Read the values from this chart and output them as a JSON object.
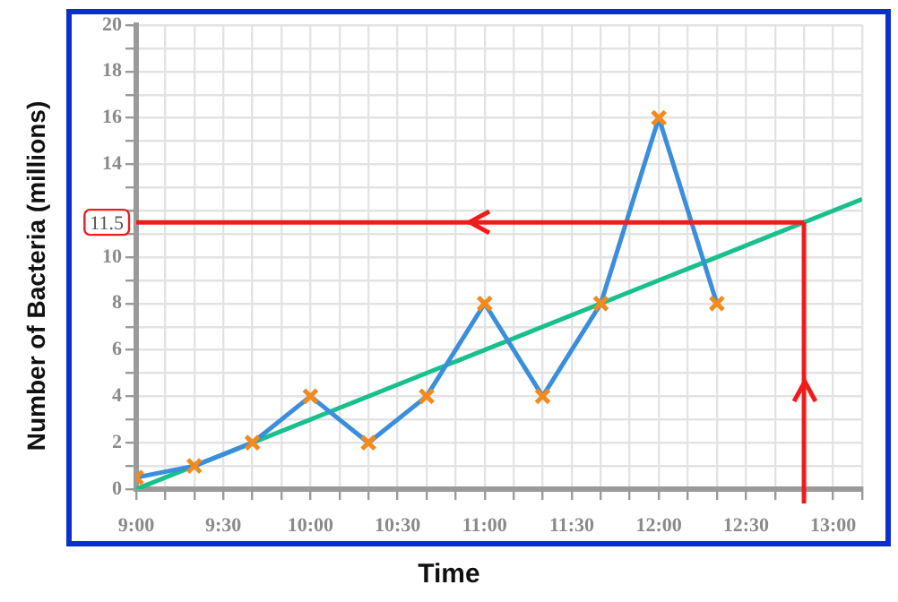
{
  "chart_data": {
    "type": "line",
    "xlabel": "Time",
    "ylabel": "Number of Bacteria (millions)",
    "xlim": [
      9,
      13.167
    ],
    "ylim": [
      0,
      20
    ],
    "xticks": [
      {
        "value": 9,
        "label": "9:00"
      },
      {
        "value": 9.167,
        "label": null
      },
      {
        "value": 9.333,
        "label": null
      },
      {
        "value": 9.5,
        "label": "9:30"
      },
      {
        "value": 9.667,
        "label": null
      },
      {
        "value": 9.833,
        "label": null
      },
      {
        "value": 10,
        "label": "10:00"
      },
      {
        "value": 10.167,
        "label": null
      },
      {
        "value": 10.333,
        "label": null
      },
      {
        "value": 10.5,
        "label": "10:30"
      },
      {
        "value": 10.667,
        "label": null
      },
      {
        "value": 10.833,
        "label": null
      },
      {
        "value": 11,
        "label": "11:00"
      },
      {
        "value": 11.167,
        "label": null
      },
      {
        "value": 11.333,
        "label": null
      },
      {
        "value": 11.5,
        "label": "11:30"
      },
      {
        "value": 11.667,
        "label": null
      },
      {
        "value": 11.833,
        "label": null
      },
      {
        "value": 12,
        "label": "12:00"
      },
      {
        "value": 12.167,
        "label": null
      },
      {
        "value": 12.333,
        "label": null
      },
      {
        "value": 12.5,
        "label": "12:30"
      },
      {
        "value": 12.667,
        "label": null
      },
      {
        "value": 12.833,
        "label": null
      },
      {
        "value": 13,
        "label": "13:00"
      },
      {
        "value": 13.167,
        "label": null
      }
    ],
    "yticks": [
      0,
      {
        "value": 1,
        "label": null
      },
      2,
      {
        "value": 3,
        "label": null
      },
      4,
      {
        "value": 5,
        "label": null
      },
      6,
      {
        "value": 7,
        "label": null
      },
      8,
      {
        "value": 9,
        "label": null
      },
      10,
      {
        "value": 11,
        "label": null
      },
      {
        "value": 12,
        "label": null
      },
      {
        "value": 13,
        "label": null
      },
      14,
      {
        "value": 15,
        "label": null
      },
      16,
      {
        "value": 17,
        "label": null
      },
      18,
      {
        "value": 19,
        "label": null
      },
      20
    ],
    "grid": true,
    "legend": false,
    "series": [
      {
        "color": "#3b8edb",
        "marker": "cross",
        "x": [
          9,
          9.333,
          9.667,
          10,
          10.333,
          10.667,
          11,
          11.333,
          11.667,
          12,
          12.333
        ],
        "values": [
          0.5,
          1,
          2,
          4,
          2,
          4,
          8,
          4,
          8,
          16,
          8
        ],
        "colors": [
          "#f28a1c",
          "#f28a1c",
          "#f28a1c",
          "#f28a1c",
          "#f28a1c",
          "#f28a1c",
          "#f28a1c",
          "#f28a1c",
          "#f28a1c",
          "#f28a1c",
          "#f28a1c"
        ]
      },
      {
        "color": "#17c08c",
        "marker": "none",
        "x": [
          9,
          13.167
        ],
        "values": [
          0,
          12.5
        ]
      }
    ],
    "ref_lines": [
      {
        "axis": "y",
        "value": 11.5,
        "label": "11.5",
        "color": "#f01c1c"
      },
      {
        "axis": "x",
        "value": 12.833,
        "color": "#f01c1c"
      }
    ]
  }
}
